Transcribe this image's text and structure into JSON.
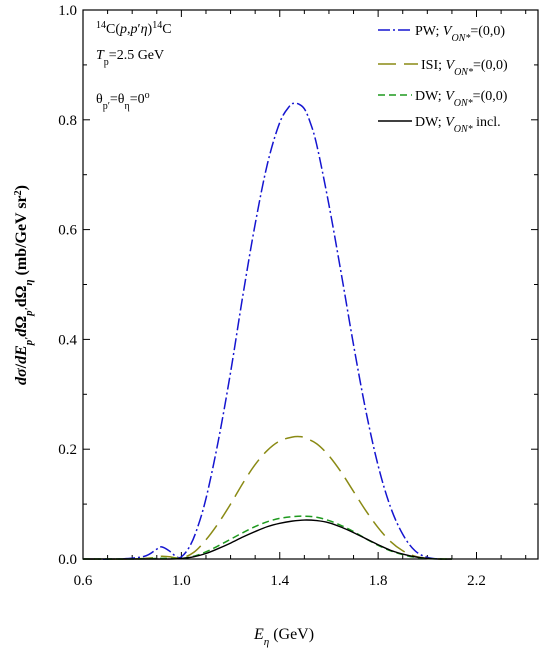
{
  "chart_data": {
    "type": "line",
    "xlabel": "Eη (GeV)",
    "ylabel": "dσ/dEp′dΩp′dΩη (mb/GeV sr²)",
    "xlim": [
      0.6,
      2.45
    ],
    "ylim": [
      0.0,
      1.0
    ],
    "xticks": [
      "0.6",
      "1.0",
      "1.4",
      "1.8",
      "2.2"
    ],
    "xtick_values": [
      0.6,
      1.0,
      1.4,
      1.8,
      2.2
    ],
    "yticks": [
      "0.0",
      "0.2",
      "0.4",
      "0.6",
      "0.8",
      "1.0"
    ],
    "ytick_values": [
      0.0,
      0.2,
      0.4,
      0.6,
      0.8,
      1.0
    ],
    "grid": false,
    "legend_placement": "top-right",
    "annotations": {
      "reaction": "14C(p,p′η)14C",
      "energy": "Tp=2.5 GeV",
      "angle": "θp′=θη=0°"
    },
    "series": [
      {
        "name": "PW; VON*=(0,0)",
        "color": "#1515d0",
        "dash": "dash-dot",
        "x": [
          0.6,
          0.75,
          0.85,
          0.9,
          0.92,
          0.95,
          0.98,
          1.0,
          1.03,
          1.06,
          1.1,
          1.15,
          1.2,
          1.25,
          1.3,
          1.35,
          1.4,
          1.44,
          1.46,
          1.48,
          1.5,
          1.52,
          1.55,
          1.6,
          1.65,
          1.7,
          1.75,
          1.8,
          1.85,
          1.9,
          1.95,
          2.0,
          2.05,
          2.1
        ],
        "y": [
          0.0,
          0.0,
          0.005,
          0.018,
          0.022,
          0.015,
          0.004,
          0.004,
          0.02,
          0.05,
          0.11,
          0.215,
          0.34,
          0.48,
          0.61,
          0.72,
          0.795,
          0.825,
          0.83,
          0.828,
          0.82,
          0.8,
          0.755,
          0.645,
          0.52,
          0.39,
          0.27,
          0.17,
          0.095,
          0.045,
          0.015,
          0.003,
          0.0,
          0.0
        ]
      },
      {
        "name": "ISI; VON*=(0,0)",
        "color": "#8a8a14",
        "dash": "long-dash",
        "x": [
          0.6,
          0.8,
          0.9,
          0.92,
          0.95,
          1.0,
          1.05,
          1.1,
          1.15,
          1.2,
          1.25,
          1.3,
          1.35,
          1.4,
          1.45,
          1.48,
          1.5,
          1.55,
          1.6,
          1.65,
          1.7,
          1.75,
          1.8,
          1.85,
          1.9,
          1.95,
          2.0,
          2.05,
          2.1
        ],
        "y": [
          0.0,
          0.0,
          0.003,
          0.005,
          0.004,
          0.002,
          0.012,
          0.035,
          0.065,
          0.1,
          0.138,
          0.172,
          0.198,
          0.215,
          0.222,
          0.223,
          0.221,
          0.21,
          0.188,
          0.158,
          0.123,
          0.088,
          0.057,
          0.032,
          0.015,
          0.005,
          0.001,
          0.0,
          0.0
        ]
      },
      {
        "name": "DW; VON*=(0,0)",
        "color": "#1e9a1e",
        "dash": "short-dash",
        "x": [
          0.6,
          0.8,
          0.9,
          0.95,
          1.0,
          1.05,
          1.1,
          1.15,
          1.2,
          1.25,
          1.3,
          1.35,
          1.4,
          1.45,
          1.5,
          1.55,
          1.6,
          1.65,
          1.7,
          1.75,
          1.8,
          1.85,
          1.9,
          1.95,
          2.0,
          2.05,
          2.1
        ],
        "y": [
          0.0,
          0.0,
          0.001,
          0.001,
          0.001,
          0.005,
          0.013,
          0.024,
          0.036,
          0.048,
          0.059,
          0.068,
          0.074,
          0.077,
          0.078,
          0.076,
          0.07,
          0.061,
          0.05,
          0.037,
          0.025,
          0.015,
          0.008,
          0.003,
          0.001,
          0.0,
          0.0
        ]
      },
      {
        "name": "DW; VON* incl.",
        "color": "#000000",
        "dash": "solid",
        "x": [
          0.6,
          0.8,
          0.9,
          0.95,
          1.0,
          1.05,
          1.1,
          1.15,
          1.2,
          1.25,
          1.3,
          1.35,
          1.4,
          1.45,
          1.5,
          1.55,
          1.6,
          1.65,
          1.7,
          1.75,
          1.8,
          1.85,
          1.9,
          1.95,
          2.0,
          2.05,
          2.1
        ],
        "y": [
          0.0,
          0.0,
          0.0,
          0.0,
          0.001,
          0.004,
          0.01,
          0.019,
          0.029,
          0.04,
          0.05,
          0.059,
          0.065,
          0.069,
          0.071,
          0.07,
          0.066,
          0.058,
          0.048,
          0.037,
          0.026,
          0.016,
          0.009,
          0.004,
          0.001,
          0.0,
          0.0
        ]
      }
    ]
  }
}
